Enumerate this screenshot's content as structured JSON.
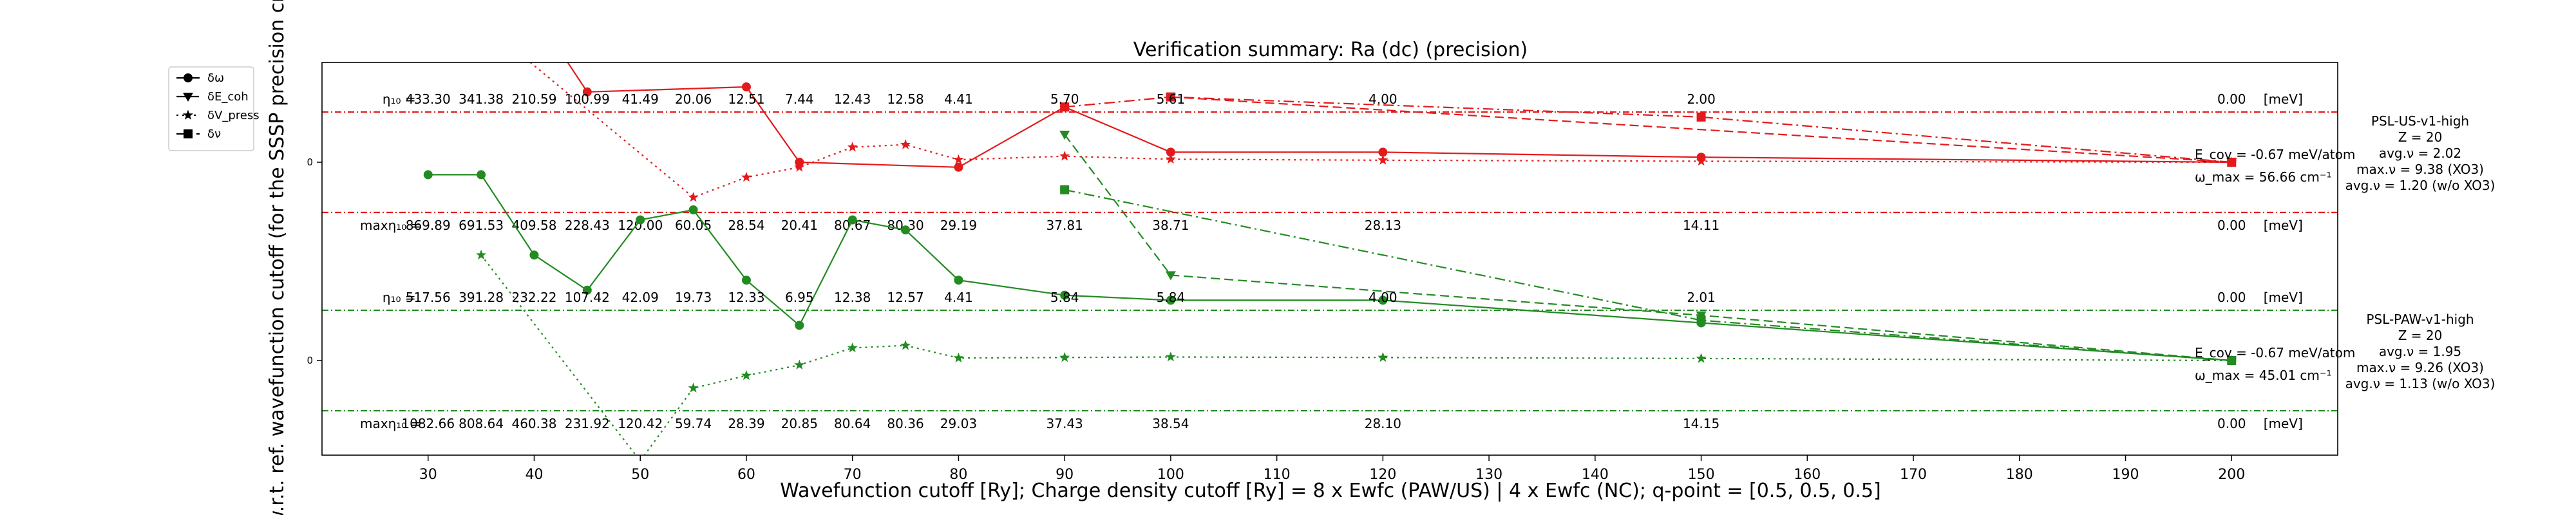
{
  "chart_data": {
    "type": "line",
    "title": "Verification summary: Ra (dc) (precision)",
    "xlabel": "Wavefunction cutoff [Ry]; Charge density cutoff [Ry] = 8 x Ewfc (PAW/US) | 4 x Ewfc (NC); q-point = [0.5, 0.5, 0.5]",
    "ylabel": "w.r.t. ref. wavefunction cutoff (for the SSSP precision crite",
    "xlim": [
      20,
      210
    ],
    "x_ticks": [
      30,
      40,
      50,
      60,
      70,
      80,
      90,
      100,
      110,
      120,
      130,
      140,
      150,
      160,
      170,
      180,
      190,
      200
    ],
    "y_ticks": [
      "0",
      "0"
    ],
    "legend": {
      "placement": "upper-left-outside",
      "entries": [
        {
          "label": "δω",
          "style": "solid",
          "marker": "circle"
        },
        {
          "label": "δE_coh",
          "style": "dashed",
          "marker": "triangle"
        },
        {
          "label": "δV_press",
          "style": "dotted",
          "marker": "star"
        },
        {
          "label": "δν",
          "style": "dashdot",
          "marker": "square"
        }
      ]
    },
    "colors": {
      "us": "#e31a1c",
      "paw": "#228b22"
    },
    "cutoffs": [
      30,
      35,
      40,
      45,
      50,
      55,
      60,
      65,
      70,
      75,
      80,
      90,
      100,
      120,
      150,
      200
    ],
    "groups": [
      {
        "name": "PSL-US-v1-high",
        "color": "#e31a1c",
        "info": [
          "PSL-US-v1-high",
          "Z = 20",
          "avg.ν = 2.02",
          "max.ν = 9.38 (XO3)",
          "avg.ν = 1.20 (w/o XO3)"
        ],
        "eta_label": "η₁₀ =",
        "eta10": [
          "433.30",
          "341.38",
          "210.59",
          "100.99",
          "41.49",
          "20.06",
          "12.51",
          "7.44",
          "12.43",
          "12.58",
          "4.41",
          "5.70",
          "5.61",
          "4.00",
          "2.00",
          "0.00"
        ],
        "max_eta_label": "maxη₁₀ =",
        "max_eta10": [
          "869.89",
          "691.53",
          "409.58",
          "228.43",
          "120.00",
          "60.05",
          "28.54",
          "20.41",
          "80.67",
          "80.30",
          "29.19",
          "37.81",
          "38.71",
          "28.13",
          "14.11",
          "0.00"
        ],
        "unit": "[meV]",
        "ecov_label": "E_cov = -0.67 meV/atom",
        "omega_label": "ω_max = 56.66 cm⁻¹",
        "series": {
          "omega": [
            null,
            null,
            3.0,
            1.4,
            null,
            null,
            1.5,
            0.0,
            null,
            null,
            -0.1,
            1.1,
            0.2,
            0.2,
            0.1,
            0.0
          ],
          "ecoh": [
            null,
            null,
            null,
            null,
            null,
            null,
            null,
            null,
            null,
            null,
            null,
            null,
            1.3,
            null,
            null,
            0.0
          ],
          "press": [
            null,
            2.8,
            null,
            null,
            null,
            -0.7,
            -0.3,
            -0.1,
            0.3,
            0.35,
            0.05,
            0.12,
            0.06,
            0.04,
            0.02,
            0.0
          ],
          "nu": [
            null,
            null,
            null,
            null,
            null,
            null,
            null,
            null,
            null,
            null,
            null,
            1.1,
            1.3,
            null,
            0.9,
            0.0
          ]
        },
        "band": 1.0
      },
      {
        "name": "PSL-PAW-v1-high",
        "color": "#228b22",
        "info": [
          "PSL-PAW-v1-high",
          "Z = 20",
          "avg.ν = 1.95",
          "max.ν = 9.26 (XO3)",
          "avg.ν = 1.13 (w/o XO3)"
        ],
        "eta_label": "η₁₀ =",
        "eta10": [
          "517.56",
          "391.28",
          "232.22",
          "107.42",
          "42.09",
          "19.73",
          "12.33",
          "6.95",
          "12.38",
          "12.57",
          "4.41",
          "5.84",
          "5.84",
          "4.00",
          "2.01",
          "0.00"
        ],
        "max_eta_label": "maxη₁₀ =",
        "max_eta10": [
          "1082.66",
          "808.64",
          "460.38",
          "231.92",
          "120.42",
          "59.74",
          "28.39",
          "20.85",
          "80.64",
          "80.36",
          "29.03",
          "37.43",
          "38.54",
          "28.10",
          "14.15",
          "0.00"
        ],
        "unit": "[meV]",
        "ecov_label": "E_cov = -0.67 meV/atom",
        "omega_label": "ω_max = 45.01 cm⁻¹",
        "series": {
          "omega": [
            3.7,
            3.7,
            2.1,
            1.4,
            2.8,
            3.0,
            1.6,
            0.7,
            2.8,
            2.6,
            1.6,
            1.3,
            1.2,
            1.2,
            0.75,
            0.0
          ],
          "ecoh": [
            null,
            null,
            null,
            null,
            null,
            null,
            null,
            null,
            null,
            null,
            null,
            4.5,
            1.7,
            null,
            0.9,
            0.0
          ],
          "press": [
            null,
            2.1,
            null,
            null,
            -2.0,
            -0.55,
            -0.3,
            -0.09,
            0.25,
            0.3,
            0.05,
            0.06,
            0.07,
            0.06,
            0.04,
            0.0
          ],
          "nu": [
            null,
            null,
            null,
            null,
            null,
            null,
            null,
            null,
            null,
            null,
            null,
            3.4,
            null,
            null,
            0.8,
            0.0
          ]
        },
        "band": 1.0
      }
    ]
  }
}
